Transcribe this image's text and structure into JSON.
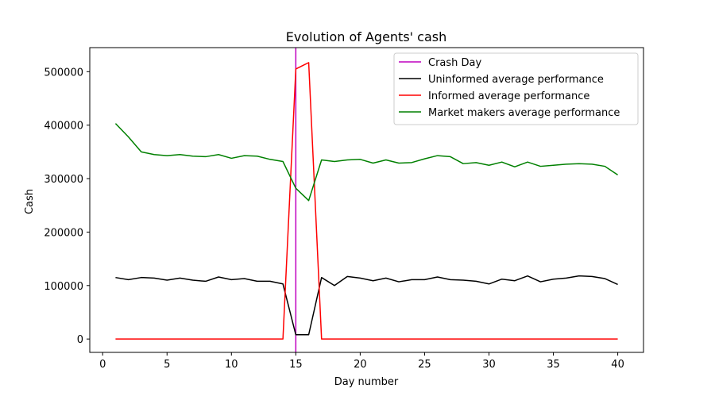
{
  "chart_data": {
    "type": "line",
    "title": "Evolution of Agents' cash",
    "xlabel": "Day number",
    "ylabel": "Cash",
    "xlim": [
      -1,
      42
    ],
    "ylim": [
      -25000,
      545000
    ],
    "xticks": [
      0,
      5,
      10,
      15,
      20,
      25,
      30,
      35,
      40
    ],
    "yticks": [
      0,
      100000,
      200000,
      300000,
      400000,
      500000
    ],
    "grid": false,
    "legend_position": "top-right",
    "crash_day": {
      "name": "Crash Day",
      "x": 15,
      "color": "#bf00bf"
    },
    "x": [
      1,
      2,
      3,
      4,
      5,
      6,
      7,
      8,
      9,
      10,
      11,
      12,
      13,
      14,
      15,
      16,
      17,
      18,
      19,
      20,
      21,
      22,
      23,
      24,
      25,
      26,
      27,
      28,
      29,
      30,
      31,
      32,
      33,
      34,
      35,
      36,
      37,
      38,
      39,
      40
    ],
    "series": [
      {
        "name": "Uninformed average performance",
        "color": "#000000",
        "values": [
          115000,
          111000,
          115000,
          114000,
          110000,
          114000,
          110000,
          108000,
          116000,
          111000,
          113000,
          108000,
          108000,
          103000,
          8000,
          8000,
          115000,
          100000,
          117000,
          114000,
          109000,
          114000,
          107000,
          111000,
          111000,
          116000,
          111000,
          110000,
          108000,
          103000,
          112000,
          109000,
          118000,
          107000,
          112000,
          114000,
          118000,
          117000,
          113000,
          102000
        ]
      },
      {
        "name": "Informed average performance",
        "color": "#ff0000",
        "values": [
          0,
          0,
          0,
          0,
          0,
          0,
          0,
          0,
          0,
          0,
          0,
          0,
          0,
          0,
          505000,
          517000,
          0,
          0,
          0,
          0,
          0,
          0,
          0,
          0,
          0,
          0,
          0,
          0,
          0,
          0,
          0,
          0,
          0,
          0,
          0,
          0,
          0,
          0,
          0,
          0
        ]
      },
      {
        "name": "Market makers average performance",
        "color": "#008000",
        "values": [
          403000,
          378000,
          350000,
          345000,
          343000,
          345000,
          342000,
          341000,
          345000,
          338000,
          343000,
          342000,
          336000,
          332000,
          282000,
          259000,
          335000,
          332000,
          335000,
          336000,
          329000,
          335000,
          329000,
          330000,
          337000,
          343000,
          341000,
          328000,
          330000,
          325000,
          331000,
          322000,
          331000,
          323000,
          325000,
          327000,
          328000,
          327000,
          323000,
          307000
        ]
      }
    ]
  }
}
